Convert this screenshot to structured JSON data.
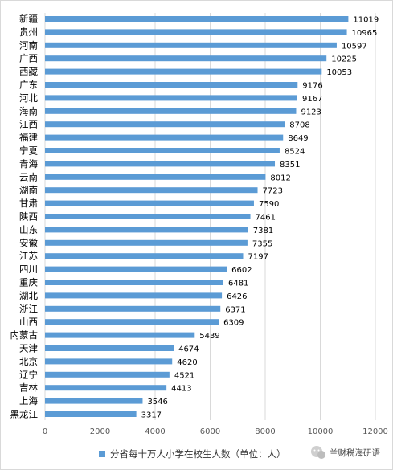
{
  "chart_data": {
    "type": "bar",
    "orientation": "horizontal",
    "categories": [
      "新疆",
      "贵州",
      "河南",
      "广西",
      "西藏",
      "广东",
      "河北",
      "海南",
      "江西",
      "福建",
      "宁夏",
      "青海",
      "云南",
      "湖南",
      "甘肃",
      "陕西",
      "山东",
      "安徽",
      "江苏",
      "四川",
      "重庆",
      "湖北",
      "浙江",
      "山西",
      "内蒙古",
      "天津",
      "北京",
      "辽宁",
      "吉林",
      "上海",
      "黑龙江"
    ],
    "series": [
      {
        "name": "分省每十万人小学在校生人数（单位：人）",
        "values": [
          11019,
          10965,
          10597,
          10225,
          10053,
          9176,
          9167,
          9123,
          8708,
          8649,
          8524,
          8351,
          8012,
          7723,
          7590,
          7461,
          7381,
          7355,
          7197,
          6602,
          6481,
          6426,
          6371,
          6309,
          5439,
          4674,
          4620,
          4521,
          4413,
          3546,
          3317
        ]
      }
    ],
    "x_ticks": [
      "0",
      "2000",
      "4000",
      "6000",
      "8000",
      "10000",
      "12000"
    ],
    "xlim": [
      0,
      12000
    ],
    "grid": "vertical",
    "legend_position": "bottom",
    "colors": {
      "bar": "#5b9bd5",
      "grid": "#d9d9d9",
      "tick_text": "#595959"
    }
  },
  "watermark": {
    "text": "兰财税海研语",
    "icon": "wechat-icon"
  }
}
